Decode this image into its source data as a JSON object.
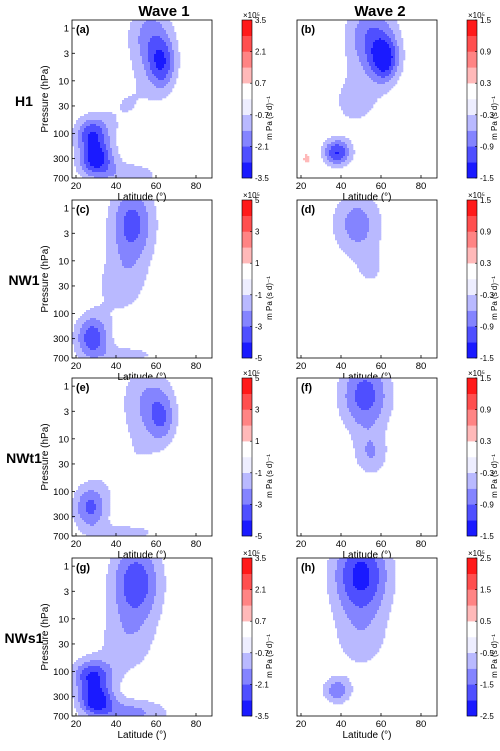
{
  "figure": {
    "column_titles": [
      "Wave 1",
      "Wave 2"
    ],
    "row_labels": [
      "H1",
      "NW1",
      "NWt1",
      "NWs1"
    ]
  },
  "colors": {
    "neg_dark": "#1a1aff",
    "neg_light": "#eeeeff",
    "pos_light": "#ffeeee",
    "pos_dark": "#ff1a1a",
    "zero": "#ffffff"
  },
  "chart_data": [
    {
      "type": "heatmap",
      "panel": "(a)",
      "row": "H1",
      "column": "Wave 1",
      "xlabel": "Latitude (°)",
      "ylabel": "Pressure (hPa)",
      "x_ticks": [
        "20",
        "40",
        "60",
        "80"
      ],
      "y_ticks": [
        "1",
        "3",
        "10",
        "30",
        "100",
        "300",
        "700"
      ],
      "xlim": [
        18,
        88
      ],
      "ylim": [
        700,
        0.7
      ],
      "y_scale": "log",
      "colorbar": {
        "scale_label": "×10⁵",
        "unit": "m Pa (s d)⁻¹",
        "ticks": [
          "3.5",
          "2.1",
          "0.7",
          "-0.7",
          "-2.1",
          "-3.5"
        ],
        "range": [
          -3.5,
          3.5
        ],
        "levels": 10
      },
      "features": [
        {
          "lat": 57,
          "p": 1.5,
          "value": -1.7,
          "spread_lat": 8,
          "spread_logp": 0.5
        },
        {
          "lat": 63,
          "p": 5,
          "value": -2.2,
          "spread_lat": 5,
          "spread_logp": 0.35
        },
        {
          "lat": 45,
          "p": 30,
          "value": -0.7,
          "spread_lat": 12,
          "spread_logp": 0.45
        },
        {
          "lat": 28,
          "p": 100,
          "value": -2.5,
          "spread_lat": 6,
          "spread_logp": 0.22
        },
        {
          "lat": 30,
          "p": 300,
          "value": -3.1,
          "spread_lat": 6,
          "spread_logp": 0.22
        },
        {
          "lat": 45,
          "p": 600,
          "value": -1.1,
          "spread_lat": 14,
          "spread_logp": 0.18
        }
      ]
    },
    {
      "type": "heatmap",
      "panel": "(b)",
      "row": "H1",
      "column": "Wave 2",
      "xlabel": "Latitude (°)",
      "ylabel": "",
      "x_ticks": [
        "20",
        "40",
        "60",
        "80"
      ],
      "y_ticks": [],
      "xlim": [
        18,
        88
      ],
      "ylim": [
        700,
        0.7
      ],
      "y_scale": "log",
      "colorbar": {
        "scale_label": "×10⁵",
        "unit": "m Pa (s d)⁻¹",
        "ticks": [
          "1.5",
          "0.9",
          "0.3",
          "-0.3",
          "-0.9",
          "-1.5"
        ],
        "range": [
          -1.5,
          1.5
        ],
        "levels": 10
      },
      "features": [
        {
          "lat": 55,
          "p": 1.5,
          "value": -0.9,
          "spread_lat": 9,
          "spread_logp": 0.5
        },
        {
          "lat": 62,
          "p": 4,
          "value": -1.1,
          "spread_lat": 5,
          "spread_logp": 0.3
        },
        {
          "lat": 47,
          "p": 25,
          "value": -0.4,
          "spread_lat": 10,
          "spread_logp": 0.4
        },
        {
          "lat": 38,
          "p": 230,
          "value": -1.2,
          "spread_lat": 5,
          "spread_logp": 0.18
        },
        {
          "lat": 23,
          "p": 300,
          "value": 0.35,
          "spread_lat": 3,
          "spread_logp": 0.15
        }
      ]
    },
    {
      "type": "heatmap",
      "panel": "(c)",
      "row": "NW1",
      "column": "Wave 1",
      "xlabel": "Latitude (°)",
      "ylabel": "Pressure (hPa)",
      "x_ticks": [
        "20",
        "40",
        "60",
        "80"
      ],
      "y_ticks": [
        "1",
        "3",
        "10",
        "30",
        "100",
        "300",
        "700"
      ],
      "xlim": [
        18,
        88
      ],
      "ylim": [
        700,
        0.7
      ],
      "y_scale": "log",
      "colorbar": {
        "scale_label": "×10⁵",
        "unit": "m Pa (s d)⁻¹",
        "ticks": [
          "5",
          "3",
          "1",
          "-1",
          "-3",
          "-5"
        ],
        "range": [
          -5,
          5
        ],
        "levels": 10
      },
      "features": [
        {
          "lat": 48,
          "p": 2,
          "value": -3.4,
          "spread_lat": 8,
          "spread_logp": 0.55
        },
        {
          "lat": 42,
          "p": 30,
          "value": -1.4,
          "spread_lat": 10,
          "spread_logp": 0.45
        },
        {
          "lat": 28,
          "p": 280,
          "value": -3.6,
          "spread_lat": 6,
          "spread_logp": 0.3
        },
        {
          "lat": 47,
          "p": 600,
          "value": -1.2,
          "spread_lat": 14,
          "spread_logp": 0.15
        }
      ]
    },
    {
      "type": "heatmap",
      "panel": "(d)",
      "row": "NW1",
      "column": "Wave 2",
      "xlabel": "Latitude (°)",
      "ylabel": "",
      "x_ticks": [
        "20",
        "40",
        "60",
        "80"
      ],
      "y_ticks": [],
      "xlim": [
        18,
        88
      ],
      "ylim": [
        700,
        0.7
      ],
      "y_scale": "log",
      "colorbar": {
        "scale_label": "×10⁵",
        "unit": "m Pa (s d)⁻¹",
        "ticks": [
          "1.5",
          "0.9",
          "0.3",
          "-0.3",
          "-0.9",
          "-1.5"
        ],
        "range": [
          -1.5,
          1.5
        ],
        "levels": 10
      },
      "features": [
        {
          "lat": 48,
          "p": 2,
          "value": -0.75,
          "spread_lat": 9,
          "spread_logp": 0.45
        },
        {
          "lat": 55,
          "p": 15,
          "value": -0.3,
          "spread_lat": 6,
          "spread_logp": 0.3
        },
        {
          "lat": 35,
          "p": 190,
          "value": 0.2,
          "spread_lat": 3,
          "spread_logp": 0.1
        }
      ]
    },
    {
      "type": "heatmap",
      "panel": "(e)",
      "row": "NWt1",
      "column": "Wave 1",
      "xlabel": "Latitude (°)",
      "ylabel": "Pressure (hPa)",
      "x_ticks": [
        "20",
        "40",
        "60",
        "80"
      ],
      "y_ticks": [
        "1",
        "3",
        "10",
        "30",
        "100",
        "300",
        "700"
      ],
      "xlim": [
        18,
        88
      ],
      "ylim": [
        700,
        0.7
      ],
      "y_scale": "log",
      "colorbar": {
        "scale_label": "×10⁵",
        "unit": "m Pa (s d)⁻¹",
        "ticks": [
          "5",
          "3",
          "1",
          "-1",
          "-3",
          "-5"
        ],
        "range": [
          -5,
          5
        ],
        "levels": 10
      },
      "features": [
        {
          "lat": 55,
          "p": 2,
          "value": -2.0,
          "spread_lat": 9,
          "spread_logp": 0.55
        },
        {
          "lat": 63,
          "p": 4,
          "value": -2.2,
          "spread_lat": 5,
          "spread_logp": 0.35
        },
        {
          "lat": 45,
          "p": 40,
          "value": -0.9,
          "spread_lat": 12,
          "spread_logp": 0.45
        },
        {
          "lat": 27,
          "p": 200,
          "value": -3.2,
          "spread_lat": 6,
          "spread_logp": 0.3
        },
        {
          "lat": 47,
          "p": 600,
          "value": -1.2,
          "spread_lat": 14,
          "spread_logp": 0.15
        }
      ]
    },
    {
      "type": "heatmap",
      "panel": "(f)",
      "row": "NWt1",
      "column": "Wave 2",
      "xlabel": "Latitude (°)",
      "ylabel": "",
      "x_ticks": [
        "20",
        "40",
        "60",
        "80"
      ],
      "y_ticks": [],
      "xlim": [
        18,
        88
      ],
      "ylim": [
        700,
        0.7
      ],
      "y_scale": "log",
      "colorbar": {
        "scale_label": "×10⁵",
        "unit": "m Pa (s d)⁻¹",
        "ticks": [
          "1.5",
          "0.9",
          "0.3",
          "-0.3",
          "-0.9",
          "-1.5"
        ],
        "range": [
          -1.5,
          1.5
        ],
        "levels": 10
      },
      "features": [
        {
          "lat": 52,
          "p": 1.5,
          "value": -1.05,
          "spread_lat": 9,
          "spread_logp": 0.5
        },
        {
          "lat": 55,
          "p": 20,
          "value": -0.55,
          "spread_lat": 6,
          "spread_logp": 0.3
        },
        {
          "lat": 35,
          "p": 200,
          "value": 0.2,
          "spread_lat": 3,
          "spread_logp": 0.1
        }
      ]
    },
    {
      "type": "heatmap",
      "panel": "(g)",
      "row": "NWs1",
      "column": "Wave 1",
      "xlabel": "Latitude (°)",
      "ylabel": "Pressure (hPa)",
      "x_ticks": [
        "20",
        "40",
        "60",
        "80"
      ],
      "y_ticks": [
        "1",
        "3",
        "10",
        "30",
        "100",
        "300",
        "700"
      ],
      "xlim": [
        18,
        88
      ],
      "ylim": [
        700,
        0.7
      ],
      "y_scale": "log",
      "colorbar": {
        "scale_label": "×10⁵",
        "unit": "m Pa (s d)⁻¹",
        "ticks": [
          "3.5",
          "2.1",
          "0.7",
          "-0.7",
          "-2.1",
          "-3.5"
        ],
        "range": [
          -3.5,
          3.5
        ],
        "levels": 10
      },
      "features": [
        {
          "lat": 50,
          "p": 2,
          "value": -2.6,
          "spread_lat": 9,
          "spread_logp": 0.55
        },
        {
          "lat": 45,
          "p": 30,
          "value": -1.0,
          "spread_lat": 11,
          "spread_logp": 0.5
        },
        {
          "lat": 28,
          "p": 120,
          "value": -2.7,
          "spread_lat": 7,
          "spread_logp": 0.22
        },
        {
          "lat": 30,
          "p": 350,
          "value": -3.0,
          "spread_lat": 6,
          "spread_logp": 0.2
        },
        {
          "lat": 47,
          "p": 600,
          "value": -1.6,
          "spread_lat": 14,
          "spread_logp": 0.18
        }
      ]
    },
    {
      "type": "heatmap",
      "panel": "(h)",
      "row": "NWs1",
      "column": "Wave 2",
      "xlabel": "Latitude (°)",
      "ylabel": "",
      "x_ticks": [
        "20",
        "40",
        "60",
        "80"
      ],
      "y_ticks": [],
      "xlim": [
        18,
        88
      ],
      "ylim": [
        700,
        0.7
      ],
      "y_scale": "log",
      "colorbar": {
        "scale_label": "×10⁵",
        "unit": "m Pa (s d)⁻¹",
        "ticks": [
          "2.5",
          "1.5",
          "0.5",
          "-0.5",
          "-1.5",
          "-2.5"
        ],
        "range": [
          -2.5,
          2.5
        ],
        "levels": 10
      },
      "features": [
        {
          "lat": 50,
          "p": 1.5,
          "value": -2.2,
          "spread_lat": 10,
          "spread_logp": 0.6
        },
        {
          "lat": 50,
          "p": 30,
          "value": -0.6,
          "spread_lat": 11,
          "spread_logp": 0.45
        },
        {
          "lat": 38,
          "p": 230,
          "value": -1.3,
          "spread_lat": 5,
          "spread_logp": 0.18
        },
        {
          "lat": 22,
          "p": 320,
          "value": 0.35,
          "spread_lat": 3,
          "spread_logp": 0.12
        }
      ]
    }
  ]
}
